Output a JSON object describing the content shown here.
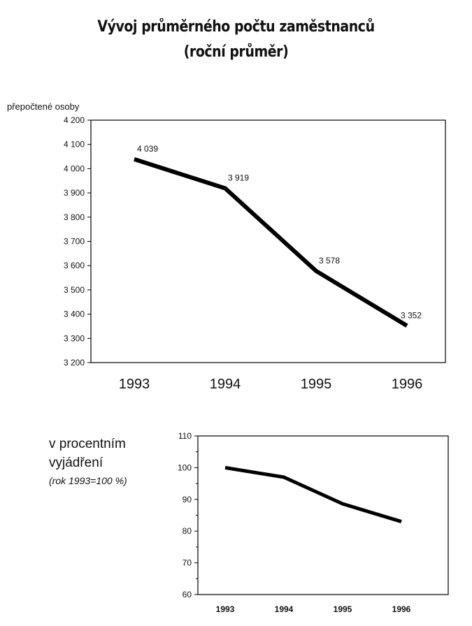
{
  "page": {
    "title_line1": "Vývoj průměrného počtu zaměstnanců",
    "title_line2": "(roční průměr)",
    "unit_label": "přepočtené osoby",
    "note_line1": "v procentním",
    "note_line2": "vyjádření",
    "note_line3": "(rok 1993=100 %)"
  },
  "chart_data": [
    {
      "type": "line",
      "title": "Vývoj průměrného počtu zaměstnanců (roční průměr)",
      "ylabel": "přepočtené osoby",
      "xlabel": "",
      "categories": [
        "1993",
        "1994",
        "1995",
        "1996"
      ],
      "series": [
        {
          "values": [
            4039,
            3919,
            3578,
            3352
          ]
        }
      ],
      "data_labels": [
        "4 039",
        "3 919",
        "3 578",
        "3 352"
      ],
      "ylim": [
        3200,
        4200
      ],
      "yticks": [
        3200,
        3300,
        3400,
        3500,
        3600,
        3700,
        3800,
        3900,
        4000,
        4100,
        4200
      ],
      "ytick_labels": [
        "3 200",
        "3 300",
        "3 400",
        "3 500",
        "3 600",
        "3 700",
        "3 800",
        "3 900",
        "4 000",
        "4 100",
        "4 200"
      ],
      "grid": false,
      "color": "#000000"
    },
    {
      "type": "line",
      "title": "",
      "xlabel": "",
      "ylabel": "",
      "categories": [
        "1993",
        "1994",
        "1995",
        "1996"
      ],
      "series": [
        {
          "values": [
            100,
            97,
            88.6,
            83
          ]
        }
      ],
      "ylim": [
        60,
        110
      ],
      "yticks": [
        60,
        70,
        80,
        90,
        100,
        110
      ],
      "ytick_labels": [
        "60",
        "70",
        "80",
        "90",
        "100",
        "110"
      ],
      "grid": false,
      "color": "#000000"
    }
  ]
}
